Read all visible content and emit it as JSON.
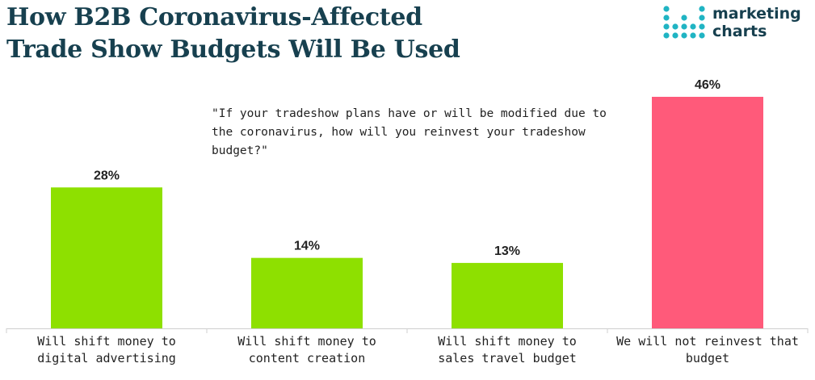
{
  "title_lines": [
    "How B2B Coronavirus-Affected",
    "Trade Show Budgets Will Be Used"
  ],
  "question_text": "\"If your tradeshow plans have or will be modified due to the coronavirus, how will you reinvest your tradeshow budget?\"",
  "logo": {
    "line1": "marketing",
    "line2": "charts"
  },
  "colors": {
    "title": "#17404f",
    "bar_green": "#8ee000",
    "bar_pink": "#ff5a7a",
    "logo_dots": "#20b4c3"
  },
  "chart_data": {
    "type": "bar",
    "categories": [
      "Will shift money to digital advertising",
      "Will shift money to content creation",
      "Will shift money to sales travel budget",
      "We will not reinvest that budget"
    ],
    "category_label_lines": [
      [
        "Will shift money to",
        "digital advertising"
      ],
      [
        "Will shift money to",
        "content creation"
      ],
      [
        "Will shift money to",
        "sales travel budget"
      ],
      [
        "We will not reinvest that",
        "budget"
      ]
    ],
    "values": [
      28,
      14,
      13,
      46
    ],
    "value_labels": [
      "28%",
      "14%",
      "13%",
      "46%"
    ],
    "bar_colors": [
      "#8ee000",
      "#8ee000",
      "#8ee000",
      "#ff5a7a"
    ],
    "ylim": [
      0,
      46
    ],
    "grid": false,
    "legend": "none"
  }
}
